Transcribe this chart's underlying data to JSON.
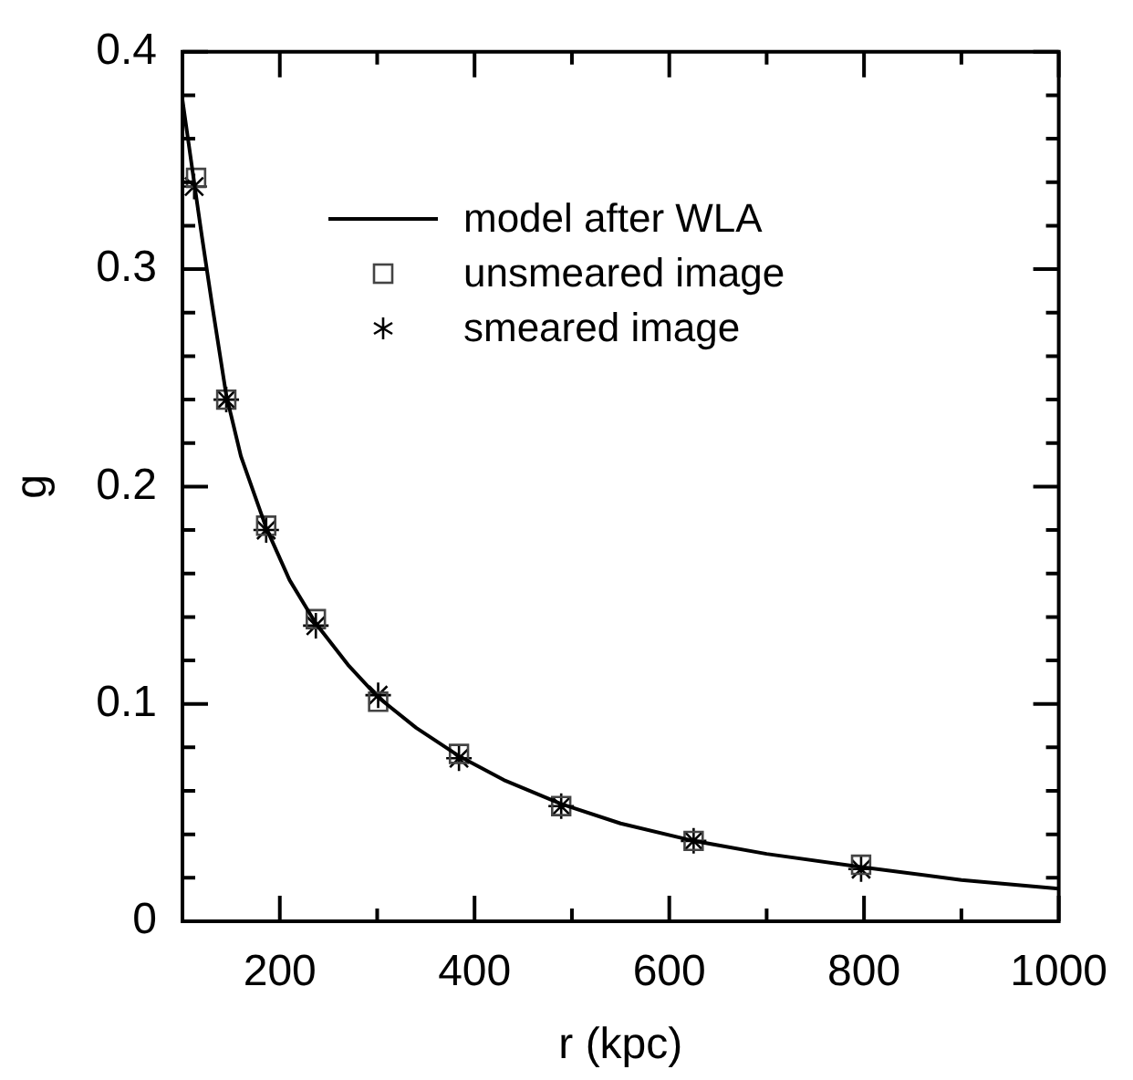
{
  "chart_data": {
    "type": "line",
    "xlabel": "r (kpc)",
    "ylabel": "g",
    "xlim": [
      100,
      1000
    ],
    "xticks": [
      {
        "value": 100,
        "label": null
      },
      200,
      {
        "value": 300,
        "label": null
      },
      400,
      {
        "value": 500,
        "label": null
      },
      600,
      {
        "value": 700,
        "label": null
      },
      800,
      {
        "value": 900,
        "label": null
      },
      1000
    ],
    "ylim": [
      0,
      0.4
    ],
    "yticks": [
      0,
      {
        "value": 0.02,
        "label": null
      },
      {
        "value": 0.04,
        "label": null
      },
      {
        "value": 0.06,
        "label": null
      },
      {
        "value": 0.08,
        "label": null
      },
      0.1,
      {
        "value": 0.12,
        "label": null
      },
      {
        "value": 0.14,
        "label": null
      },
      {
        "value": 0.16,
        "label": null
      },
      {
        "value": 0.18,
        "label": null
      },
      0.2,
      {
        "value": 0.22,
        "label": null
      },
      {
        "value": 0.24,
        "label": null
      },
      {
        "value": 0.26,
        "label": null
      },
      {
        "value": 0.28,
        "label": null
      },
      0.3,
      {
        "value": 0.32,
        "label": null
      },
      {
        "value": 0.34,
        "label": null
      },
      {
        "value": 0.36,
        "label": null
      },
      {
        "value": 0.38,
        "label": null
      },
      0.4
    ],
    "grid": false,
    "legend": "top",
    "series": [
      {
        "name": "model after WLA",
        "type": "line",
        "color": "#000000",
        "marker": "none",
        "line_style": "solid",
        "x": [
          100,
          112,
          120,
          130,
          145,
          160,
          186,
          210,
          237,
          270,
          301,
          340,
          384,
          430,
          489,
          550,
          625,
          700,
          797,
          900,
          1000
        ],
        "values": [
          0.378,
          0.34,
          0.315,
          0.285,
          0.242,
          0.214,
          0.181,
          0.157,
          0.137,
          0.118,
          0.103,
          0.089,
          0.076,
          0.065,
          0.054,
          0.045,
          0.037,
          0.031,
          0.025,
          0.019,
          0.015
        ]
      },
      {
        "name": "unsmeared image",
        "type": "scatter",
        "color": "#444444",
        "marker": "square",
        "x": [
          114,
          145,
          186,
          237,
          301,
          384,
          489,
          625,
          797
        ],
        "values": [
          0.342,
          0.24,
          0.182,
          0.139,
          0.101,
          0.077,
          0.053,
          0.037,
          0.026
        ]
      },
      {
        "name": "smeared image",
        "type": "scatter",
        "color": "#000000",
        "marker": "cross",
        "x": [
          112,
          145,
          186,
          237,
          301,
          384,
          489,
          625,
          797
        ],
        "values": [
          0.338,
          0.24,
          0.18,
          0.136,
          0.104,
          0.075,
          0.053,
          0.037,
          0.024
        ]
      }
    ]
  }
}
